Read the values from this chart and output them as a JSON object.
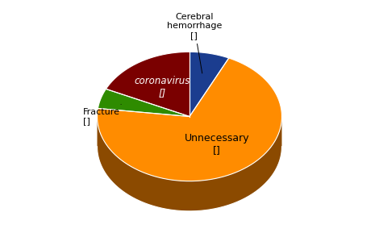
{
  "labels": [
    "Cerebral\nhemorrhage\n[]",
    "Unnecessary\n[]",
    "Fracture\n[]",
    "coronavirus\n[]"
  ],
  "sizes": [
    7,
    70,
    5,
    18
  ],
  "colors": [
    "#1b3d8f",
    "#ff8c00",
    "#2e8b00",
    "#7a0000"
  ],
  "dark_colors": [
    "#0f2050",
    "#8b4a00",
    "#1a5000",
    "#3d0000"
  ],
  "rim_color": "#7a3d00",
  "startangle": 90
}
